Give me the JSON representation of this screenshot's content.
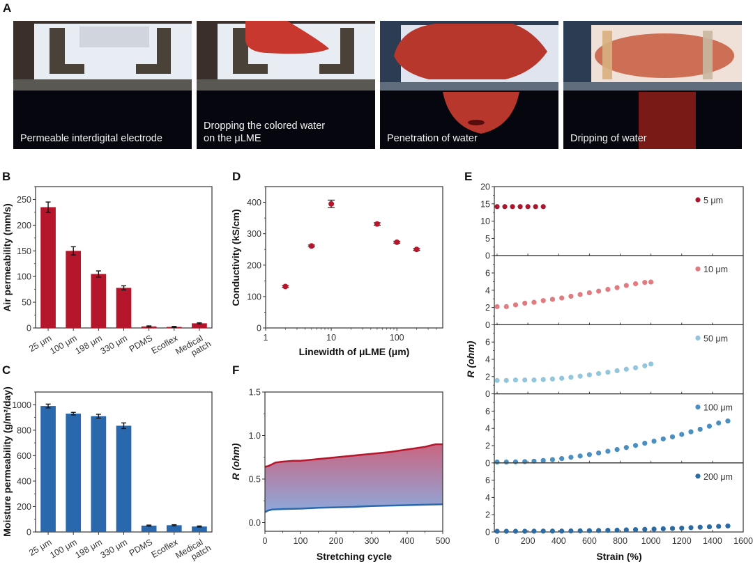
{
  "figure": {
    "panel_letters": [
      "A",
      "B",
      "C",
      "D",
      "E",
      "F"
    ],
    "photos": [
      {
        "caption": "Permeable interdigital electrode",
        "scene": "dry-electrode"
      },
      {
        "caption": "Dropping the colored water\non the μLME",
        "scene": "dropping"
      },
      {
        "caption": "Penetration of water",
        "scene": "penetration"
      },
      {
        "caption": "Dripping of water",
        "scene": "dripping"
      }
    ],
    "colors": {
      "dark_red": "#b5162b",
      "blue": "#2a68ad",
      "e_5um": "#a8172e",
      "e_10um": "#e07b80",
      "e_50um": "#93c6dc",
      "e_100um": "#4a8fc0",
      "e_200um": "#2c6aa3"
    }
  },
  "chart_data": [
    {
      "id": "B",
      "type": "bar",
      "title": "",
      "xlabel": "",
      "ylabel": "Air permeability (mm/s)",
      "categories": [
        "25 μm",
        "100 μm",
        "198 μm",
        "330 μm",
        "PDMS",
        "Ecoflex",
        "Medical\npatch"
      ],
      "values": [
        235,
        150,
        105,
        78,
        3,
        2,
        9
      ],
      "errors": [
        10,
        8,
        6,
        4,
        1,
        1,
        1
      ],
      "yticks": [
        0,
        50,
        100,
        150,
        200,
        250
      ],
      "ylim": [
        0,
        275
      ],
      "color": "#b5162b"
    },
    {
      "id": "C",
      "type": "bar",
      "title": "",
      "xlabel": "",
      "ylabel": "Moisture permeability (g/m²/day)",
      "categories": [
        "25 μm",
        "100 μm",
        "198 μm",
        "330 μm",
        "PDMS",
        "Ecoflex",
        "Medical\npatch"
      ],
      "values": [
        990,
        930,
        910,
        835,
        50,
        53,
        43
      ],
      "errors": [
        15,
        10,
        15,
        22,
        4,
        4,
        4
      ],
      "yticks": [
        0,
        200,
        400,
        600,
        800,
        1000
      ],
      "ylim": [
        0,
        1100
      ],
      "color": "#2a68ad"
    },
    {
      "id": "D",
      "type": "scatter",
      "title": "",
      "xlabel": "Linewidth of μLME (μm)",
      "ylabel": "Conductivity (kS/cm)",
      "xscale": "log",
      "x": [
        2,
        5,
        10,
        50,
        100,
        200
      ],
      "y": [
        132,
        261,
        395,
        331,
        273,
        250
      ],
      "yerr": [
        3,
        3,
        12,
        4,
        3,
        3
      ],
      "xticks": [
        1,
        10,
        100
      ],
      "yticks": [
        0,
        100,
        200,
        300,
        400
      ],
      "xlim": [
        1,
        500
      ],
      "ylim": [
        0,
        450
      ],
      "color": "#b5162b"
    },
    {
      "id": "E",
      "type": "scatter",
      "title": "",
      "xlabel": "Strain (%)",
      "ylabel": "R (ohm)",
      "xlim": [
        0,
        1600
      ],
      "xticks": [
        0,
        200,
        400,
        600,
        800,
        1000,
        1200,
        1400,
        1600
      ],
      "subplots": [
        {
          "name": "5 μm",
          "ylim": [
            0,
            20
          ],
          "yticks": [
            0,
            5,
            10,
            15,
            20
          ],
          "x": [
            0,
            50,
            100,
            150,
            200,
            250,
            300
          ],
          "y": [
            14.2,
            14.2,
            14.2,
            14.2,
            14.2,
            14.2,
            14.2
          ]
        },
        {
          "name": "10 μm",
          "ylim": [
            0,
            8
          ],
          "yticks": [
            0,
            2,
            4,
            6
          ],
          "x": [
            0,
            60,
            120,
            180,
            240,
            300,
            360,
            420,
            480,
            540,
            600,
            660,
            720,
            780,
            840,
            900,
            960,
            1000
          ],
          "y": [
            2.1,
            2.1,
            2.3,
            2.5,
            2.6,
            2.8,
            2.95,
            3.1,
            3.3,
            3.5,
            3.7,
            3.9,
            4.1,
            4.3,
            4.55,
            4.75,
            4.9,
            4.95
          ]
        },
        {
          "name": "50 μm",
          "ylim": [
            0,
            8
          ],
          "yticks": [
            0,
            2,
            4,
            6
          ],
          "x": [
            0,
            60,
            120,
            180,
            240,
            300,
            360,
            420,
            480,
            540,
            600,
            660,
            720,
            780,
            840,
            900,
            960,
            1000
          ],
          "y": [
            1.55,
            1.55,
            1.6,
            1.6,
            1.6,
            1.65,
            1.72,
            1.8,
            1.92,
            2.05,
            2.2,
            2.35,
            2.5,
            2.68,
            2.85,
            3.02,
            3.25,
            3.45
          ]
        },
        {
          "name": "100 μm",
          "ylim": [
            0,
            8
          ],
          "yticks": [
            0,
            2,
            4,
            6
          ],
          "x": [
            0,
            60,
            120,
            180,
            240,
            300,
            360,
            420,
            480,
            540,
            600,
            660,
            720,
            780,
            840,
            900,
            960,
            1020,
            1080,
            1140,
            1200,
            1260,
            1320,
            1380,
            1440,
            1500
          ],
          "y": [
            0.1,
            0.1,
            0.12,
            0.15,
            0.2,
            0.28,
            0.38,
            0.5,
            0.65,
            0.8,
            0.97,
            1.15,
            1.35,
            1.55,
            1.78,
            2.02,
            2.28,
            2.52,
            2.78,
            3.02,
            3.3,
            3.6,
            3.9,
            4.25,
            4.62,
            4.85
          ]
        },
        {
          "name": "200 μm",
          "ylim": [
            0,
            8
          ],
          "yticks": [
            0,
            2,
            4,
            6
          ],
          "x": [
            0,
            60,
            120,
            180,
            240,
            300,
            360,
            420,
            480,
            540,
            600,
            660,
            720,
            780,
            840,
            900,
            960,
            1020,
            1080,
            1140,
            1200,
            1260,
            1320,
            1380,
            1440,
            1500
          ],
          "y": [
            0.08,
            0.08,
            0.08,
            0.08,
            0.09,
            0.1,
            0.1,
            0.1,
            0.12,
            0.13,
            0.15,
            0.17,
            0.19,
            0.21,
            0.24,
            0.27,
            0.3,
            0.33,
            0.37,
            0.41,
            0.45,
            0.5,
            0.55,
            0.6,
            0.65,
            0.7
          ]
        }
      ]
    },
    {
      "id": "F",
      "type": "area",
      "title": "",
      "xlabel": "Stretching cycle",
      "ylabel": "R (ohm)",
      "xlim": [
        0,
        500
      ],
      "ylim": [
        -0.1,
        1.5
      ],
      "xticks": [
        0,
        100,
        200,
        300,
        400,
        500
      ],
      "yticks": [
        0.0,
        0.5,
        1.0,
        1.5
      ],
      "series": [
        {
          "name": "upper",
          "x": [
            0,
            10,
            20,
            30,
            50,
            80,
            100,
            150,
            200,
            250,
            300,
            350,
            400,
            450,
            480,
            500
          ],
          "y": [
            0.64,
            0.65,
            0.67,
            0.69,
            0.7,
            0.71,
            0.71,
            0.73,
            0.75,
            0.77,
            0.79,
            0.81,
            0.84,
            0.87,
            0.9,
            0.9
          ],
          "color": "#b5162b"
        },
        {
          "name": "lower",
          "x": [
            0,
            10,
            20,
            50,
            100,
            150,
            200,
            250,
            300,
            350,
            400,
            450,
            500
          ],
          "y": [
            0.12,
            0.14,
            0.15,
            0.155,
            0.16,
            0.17,
            0.175,
            0.18,
            0.19,
            0.195,
            0.2,
            0.205,
            0.21
          ],
          "color": "#2a68ad"
        }
      ],
      "fill_gradient": [
        "#c04a6a",
        "#7a9ad6"
      ]
    }
  ]
}
